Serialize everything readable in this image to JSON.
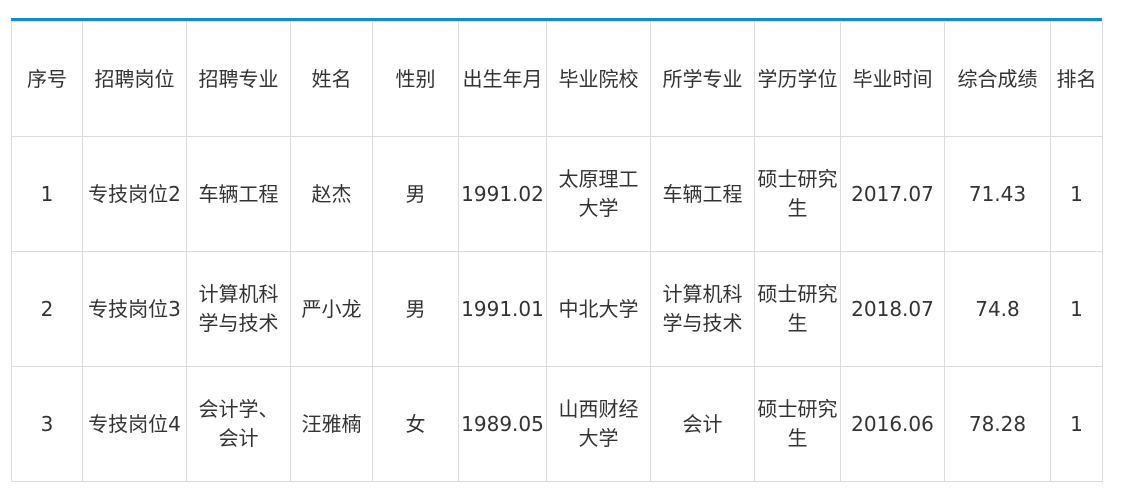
{
  "accent_color": "#1a8bc6",
  "headers": [
    "序号",
    "招聘岗位",
    "招聘专业",
    "姓名",
    "性别",
    "出生年月",
    "毕业院校",
    "所学专业",
    "学历学位",
    "毕业时间",
    "综合成绩",
    "排名"
  ],
  "rows": [
    [
      "1",
      "专技岗位2",
      "车辆工程",
      "赵杰",
      "男",
      "1991.02",
      "太原理工大学",
      "车辆工程",
      "硕士研究生",
      "2017.07",
      "71.43",
      "1"
    ],
    [
      "2",
      "专技岗位3",
      "计算机科学与技术",
      "严小龙",
      "男",
      "1991.01",
      "中北大学",
      "计算机科学与技术",
      "硕士研究生",
      "2018.07",
      "74.8",
      "1"
    ],
    [
      "3",
      "专技岗位4",
      "会计学、会计",
      "汪雅楠",
      "女",
      "1989.05",
      "山西财经大学",
      "会计",
      "硕士研究生",
      "2016.06",
      "78.28",
      "1"
    ]
  ]
}
